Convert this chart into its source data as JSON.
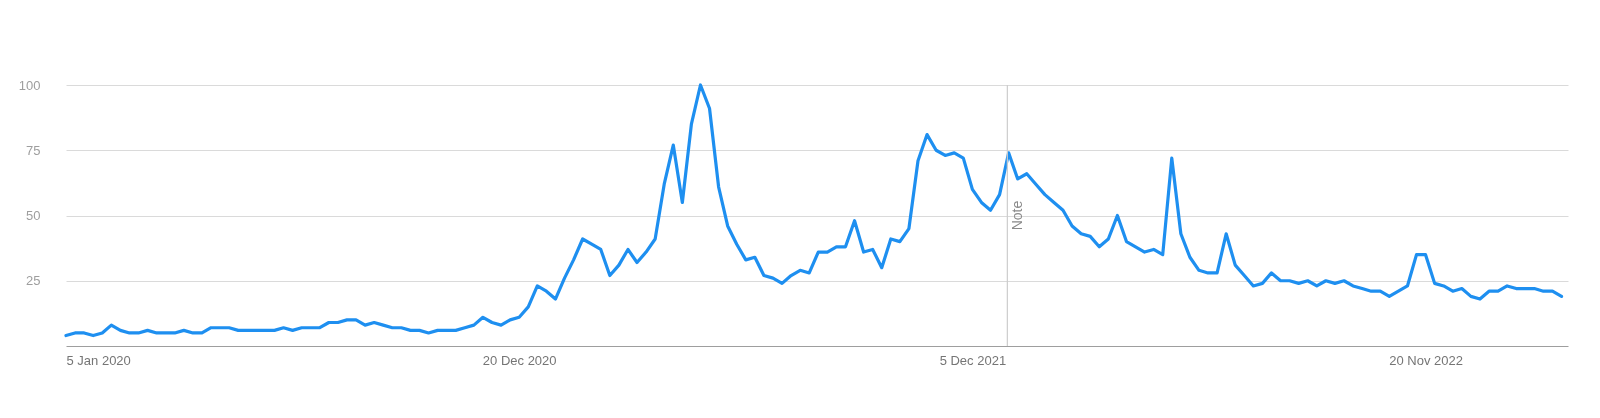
{
  "chart_data": {
    "type": "line",
    "xlim": [
      "2020-01-05",
      "2023-03-10"
    ],
    "ylim": [
      0,
      100
    ],
    "xticks": [
      {
        "value": "2020-01-05",
        "label": "5 Jan 2020"
      },
      {
        "value": "2020-12-20",
        "label": "20 Dec 2020"
      },
      {
        "value": "2021-12-05",
        "label": "5 Dec 2021"
      },
      {
        "value": "2022-11-20",
        "label": "20 Nov 2022"
      }
    ],
    "yticks": [
      25,
      50,
      75,
      100
    ],
    "grid": "y",
    "legend": false,
    "marker": "none",
    "line_style": "solid",
    "ref_lines": [
      {
        "axis": "x",
        "value": "2022-01-01",
        "label": "Note",
        "color": "#cccccc"
      }
    ],
    "x": [
      "2020-01-05",
      "2020-01-12",
      "2020-01-19",
      "2020-01-26",
      "2020-02-02",
      "2020-02-09",
      "2020-02-16",
      "2020-02-23",
      "2020-03-01",
      "2020-03-08",
      "2020-03-15",
      "2020-03-22",
      "2020-03-29",
      "2020-04-05",
      "2020-04-12",
      "2020-04-19",
      "2020-04-26",
      "2020-05-03",
      "2020-05-10",
      "2020-05-17",
      "2020-05-24",
      "2020-05-31",
      "2020-06-07",
      "2020-06-14",
      "2020-06-21",
      "2020-06-28",
      "2020-07-05",
      "2020-07-12",
      "2020-07-19",
      "2020-07-26",
      "2020-08-02",
      "2020-08-09",
      "2020-08-16",
      "2020-08-23",
      "2020-08-30",
      "2020-09-06",
      "2020-09-13",
      "2020-09-20",
      "2020-09-27",
      "2020-10-04",
      "2020-10-11",
      "2020-10-18",
      "2020-10-25",
      "2020-11-01",
      "2020-11-08",
      "2020-11-15",
      "2020-11-22",
      "2020-11-29",
      "2020-12-06",
      "2020-12-13",
      "2020-12-20",
      "2020-12-27",
      "2021-01-03",
      "2021-01-10",
      "2021-01-17",
      "2021-01-24",
      "2021-01-31",
      "2021-02-07",
      "2021-02-14",
      "2021-02-21",
      "2021-02-28",
      "2021-03-07",
      "2021-03-14",
      "2021-03-21",
      "2021-03-28",
      "2021-04-04",
      "2021-04-11",
      "2021-04-18",
      "2021-04-25",
      "2021-05-02",
      "2021-05-09",
      "2021-05-16",
      "2021-05-23",
      "2021-05-30",
      "2021-06-06",
      "2021-06-13",
      "2021-06-20",
      "2021-06-27",
      "2021-07-04",
      "2021-07-11",
      "2021-07-18",
      "2021-07-25",
      "2021-08-01",
      "2021-08-08",
      "2021-08-15",
      "2021-08-22",
      "2021-08-29",
      "2021-09-05",
      "2021-09-12",
      "2021-09-19",
      "2021-09-26",
      "2021-10-03",
      "2021-10-10",
      "2021-10-17",
      "2021-10-24",
      "2021-10-31",
      "2021-11-07",
      "2021-11-14",
      "2021-11-21",
      "2021-11-28",
      "2021-12-05",
      "2021-12-12",
      "2021-12-19",
      "2021-12-26",
      "2022-01-02",
      "2022-01-09",
      "2022-01-16",
      "2022-01-23",
      "2022-01-30",
      "2022-02-06",
      "2022-02-13",
      "2022-02-20",
      "2022-02-27",
      "2022-03-06",
      "2022-03-13",
      "2022-03-20",
      "2022-03-27",
      "2022-04-03",
      "2022-04-10",
      "2022-04-17",
      "2022-04-24",
      "2022-05-01",
      "2022-05-08",
      "2022-05-15",
      "2022-05-22",
      "2022-05-29",
      "2022-06-05",
      "2022-06-12",
      "2022-06-19",
      "2022-06-26",
      "2022-07-03",
      "2022-07-10",
      "2022-07-17",
      "2022-07-24",
      "2022-07-31",
      "2022-08-07",
      "2022-08-14",
      "2022-08-21",
      "2022-08-28",
      "2022-09-04",
      "2022-09-11",
      "2022-09-18",
      "2022-09-25",
      "2022-10-02",
      "2022-10-09",
      "2022-10-16",
      "2022-10-23",
      "2022-10-30",
      "2022-11-06",
      "2022-11-13",
      "2022-11-20",
      "2022-11-27",
      "2022-12-04",
      "2022-12-11",
      "2022-12-18",
      "2022-12-25",
      "2023-01-01",
      "2023-01-08",
      "2023-01-15",
      "2023-01-22",
      "2023-01-29",
      "2023-02-05",
      "2023-02-12",
      "2023-02-19",
      "2023-02-26",
      "2023-03-05"
    ],
    "series": [
      {
        "color": "#1e8ff0",
        "values": [
          4,
          5,
          5,
          4,
          5,
          8,
          6,
          5,
          5,
          6,
          5,
          5,
          5,
          6,
          5,
          5,
          7,
          7,
          7,
          6,
          6,
          6,
          6,
          6,
          7,
          6,
          7,
          7,
          7,
          9,
          9,
          10,
          10,
          8,
          9,
          8,
          7,
          7,
          6,
          6,
          5,
          6,
          6,
          6,
          7,
          8,
          11,
          9,
          8,
          10,
          11,
          15,
          23,
          21,
          18,
          26,
          33,
          41,
          39,
          37,
          27,
          31,
          37,
          32,
          36,
          41,
          62,
          77,
          55,
          85,
          100,
          91,
          61,
          46,
          39,
          33,
          34,
          27,
          26,
          24,
          27,
          29,
          28,
          36,
          36,
          38,
          38,
          48,
          36,
          37,
          30,
          41,
          40,
          45,
          71,
          81,
          75,
          73,
          74,
          72,
          60,
          55,
          52,
          58,
          74,
          64,
          66,
          62,
          58,
          55,
          52,
          46,
          43,
          42,
          38,
          41,
          50,
          40,
          38,
          36,
          37,
          35,
          72,
          43,
          34,
          29,
          28,
          28,
          43,
          31,
          27,
          23,
          24,
          28,
          25,
          25,
          24,
          25,
          23,
          25,
          24,
          25,
          23,
          22,
          21,
          21,
          19,
          21,
          23,
          35,
          35,
          24,
          23,
          21,
          22,
          19,
          18,
          21,
          21,
          23,
          22,
          22,
          22,
          21,
          21,
          19
        ]
      }
    ]
  }
}
